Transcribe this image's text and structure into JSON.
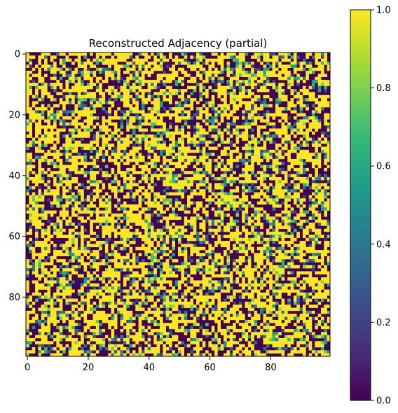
{
  "chart_data": {
    "type": "heatmap",
    "title": "Reconstructed Adjacency (partial)",
    "xlabel": "",
    "ylabel": "",
    "matrix_rows": 100,
    "matrix_cols": 100,
    "x_ticks": [
      0,
      20,
      40,
      60,
      80
    ],
    "y_ticks": [
      0,
      20,
      40,
      60,
      80
    ],
    "x_tick_labels": [
      "0",
      "20",
      "40",
      "60",
      "80"
    ],
    "y_tick_labels": [
      "0",
      "20",
      "40",
      "60",
      "80"
    ],
    "value_range": [
      0,
      1
    ],
    "colormap": "viridis",
    "colormap_stops": [
      "#440154",
      "#482878",
      "#3e4989",
      "#31688e",
      "#26828e",
      "#1f9e89",
      "#35b779",
      "#6ece58",
      "#b5de2b",
      "#fde725"
    ],
    "colorbar_ticks": [
      0.0,
      0.2,
      0.4,
      0.6,
      0.8,
      1.0
    ],
    "colorbar_tick_labels": [
      "0.0",
      "0.2",
      "0.4",
      "0.6",
      "0.8",
      "1.0"
    ],
    "value_distribution": {
      "dominant_values": [
        0,
        1
      ],
      "intermediate_fraction": 0.15
    },
    "grid": false,
    "colorbar_position": "right"
  }
}
